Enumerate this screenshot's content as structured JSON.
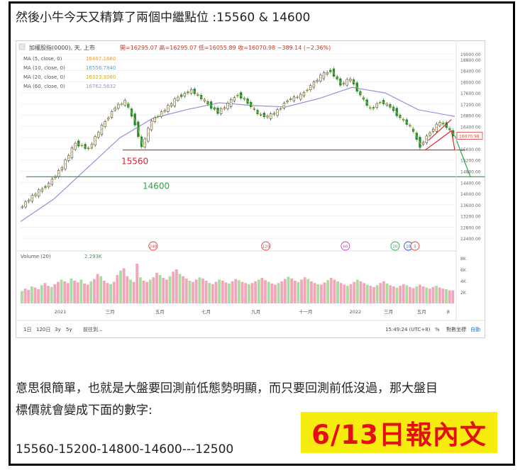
{
  "heading": "然後小牛今天又精算了兩個中繼點位 :15560 & 14600",
  "paragraph": {
    "line1": "意思很簡單，也就是大盤要回測前低態勢明顯，而只要回測前低沒過，那大盤目",
    "line2": "標價就會變成下面的數字:",
    "line3": "15560-15200-14800-14600---12500"
  },
  "badge": "6/13日報內文",
  "chart_data": {
    "type": "line",
    "symbol_label": "加權股指(0000), 天, 上市",
    "ohlc_readout": "開=16295.07  高=16295.07  低=16055.89  收=16070.98  −389.14 (−2.36%)",
    "ma_legend": [
      {
        "label": "MA (5, close, 0)",
        "value": "16467.1660",
        "color": "#f0a030"
      },
      {
        "label": "MA (10, close, 0)",
        "value": "16556.7840",
        "color": "#40b0e0"
      },
      {
        "label": "MA (20, close, 0)",
        "value": "16323.3060",
        "color": "#e0c030"
      },
      {
        "label": "MA (60, close, 0)",
        "value": "16762.5632",
        "color": "#9a90d8"
      }
    ],
    "price_axis_ticks": [
      "19000.00",
      "18800.00",
      "18400.00",
      "18000.00",
      "17600.00",
      "17200.00",
      "16800.00",
      "16400.00",
      "16000.00",
      "15600.00",
      "15200.00",
      "14800.00",
      "14400.00",
      "14000.00",
      "13600.00",
      "13200.00",
      "12800.00",
      "12400.00"
    ],
    "last_price_label": "16070.98",
    "ylim": [
      12200,
      19100
    ],
    "levels": [
      {
        "label": "15560",
        "value": 15560,
        "color": "#e0202a"
      },
      {
        "label": "14600",
        "value": 14600,
        "color": "#2aa845"
      }
    ],
    "x_ticks": [
      "2021",
      "三月",
      "五月",
      "七月",
      "九月",
      "十一月",
      "2022",
      "三月",
      "五月",
      "8"
    ],
    "event_markers": [
      "240",
      "120",
      "60",
      "20",
      "10",
      "5"
    ],
    "price_series": [
      {
        "t": 0,
        "y": 13450
      },
      {
        "t": 4,
        "y": 13900
      },
      {
        "t": 9,
        "y": 14350
      },
      {
        "t": 13,
        "y": 14950
      },
      {
        "t": 17,
        "y": 15800
      },
      {
        "t": 21,
        "y": 15600
      },
      {
        "t": 25,
        "y": 16400
      },
      {
        "t": 29,
        "y": 17100
      },
      {
        "t": 32,
        "y": 17300
      },
      {
        "t": 35,
        "y": 16500
      },
      {
        "t": 37,
        "y": 15650
      },
      {
        "t": 40,
        "y": 16600
      },
      {
        "t": 44,
        "y": 17000
      },
      {
        "t": 48,
        "y": 17450
      },
      {
        "t": 52,
        "y": 17700
      },
      {
        "t": 56,
        "y": 17300
      },
      {
        "t": 60,
        "y": 16900
      },
      {
        "t": 63,
        "y": 17200
      },
      {
        "t": 66,
        "y": 17550
      },
      {
        "t": 69,
        "y": 17250
      },
      {
        "t": 72,
        "y": 16850
      },
      {
        "t": 75,
        "y": 16750
      },
      {
        "t": 78,
        "y": 16950
      },
      {
        "t": 81,
        "y": 17350
      },
      {
        "t": 85,
        "y": 17500
      },
      {
        "t": 88,
        "y": 17850
      },
      {
        "t": 91,
        "y": 18200
      },
      {
        "t": 94,
        "y": 18400
      },
      {
        "t": 97,
        "y": 17900
      },
      {
        "t": 100,
        "y": 18100
      },
      {
        "t": 103,
        "y": 17500
      },
      {
        "t": 106,
        "y": 17000
      },
      {
        "t": 109,
        "y": 17300
      },
      {
        "t": 112,
        "y": 17100
      },
      {
        "t": 115,
        "y": 16700
      },
      {
        "t": 118,
        "y": 16400
      },
      {
        "t": 121,
        "y": 15700
      },
      {
        "t": 124,
        "y": 16200
      },
      {
        "t": 127,
        "y": 16550
      },
      {
        "t": 129,
        "y": 16400
      },
      {
        "t": 131,
        "y": 16070
      }
    ],
    "ma60_series": [
      {
        "t": 0,
        "y": 13000
      },
      {
        "t": 10,
        "y": 13800
      },
      {
        "t": 20,
        "y": 14900
      },
      {
        "t": 30,
        "y": 16000
      },
      {
        "t": 40,
        "y": 16700
      },
      {
        "t": 50,
        "y": 17000
      },
      {
        "t": 60,
        "y": 17250
      },
      {
        "t": 70,
        "y": 17150
      },
      {
        "t": 80,
        "y": 17100
      },
      {
        "t": 90,
        "y": 17400
      },
      {
        "t": 100,
        "y": 17800
      },
      {
        "t": 110,
        "y": 17600
      },
      {
        "t": 120,
        "y": 17000
      },
      {
        "t": 131,
        "y": 16760
      }
    ],
    "volume_label": "Volume (20)",
    "volume_value": "2.293K",
    "volume_axis_ticks": [
      "8K",
      "6K",
      "4K",
      "2K"
    ],
    "volume_ylim": [
      0,
      9000
    ],
    "volume_values": [
      2200,
      2600,
      2400,
      3000,
      2800,
      2500,
      3200,
      3600,
      3100,
      2900,
      3400,
      3800,
      4200,
      3900,
      3600,
      4400,
      4000,
      3700,
      4200,
      3500,
      3300,
      3900,
      4300,
      5200,
      4800,
      4000,
      3600,
      3400,
      3800,
      5000,
      5800,
      6200,
      4800,
      4200,
      3800,
      7000,
      4600,
      4000,
      3800,
      4200,
      4600,
      5400,
      5000,
      4500,
      4200,
      4800,
      5600,
      6000,
      5200,
      4800,
      4400,
      4000,
      3800,
      4200,
      4600,
      4400,
      4000,
      3600,
      3400,
      3800,
      4200,
      4000,
      3700,
      3500,
      3900,
      4300,
      4100,
      3800,
      3600,
      3400,
      3600,
      3900,
      4200,
      4500,
      4100,
      3800,
      3500,
      3300,
      3600,
      3900,
      4300,
      4700,
      4400,
      4000,
      3800,
      4200,
      4600,
      4300,
      3900,
      3600,
      3400,
      3300,
      3700,
      4100,
      4500,
      4200,
      3900,
      3600,
      3300,
      3100,
      3400,
      3800,
      4200,
      3900,
      3600,
      3300,
      3100,
      2900,
      3200,
      3600,
      3900,
      3500,
      3200,
      3000,
      2800,
      3100,
      3400,
      3200,
      2900,
      2700,
      3000,
      3300,
      3000,
      2800,
      2600,
      2900,
      3100,
      2800,
      2600,
      2500,
      2300,
      2293
    ],
    "bottom_bar": {
      "ranges": [
        "1日",
        "120日",
        "3y",
        "5y"
      ],
      "goto": "前往到...",
      "clock": "15:49:24 (UTC+8)",
      "percent": "%",
      "log_label": "對數坐標",
      "auto_label": "自動"
    }
  }
}
